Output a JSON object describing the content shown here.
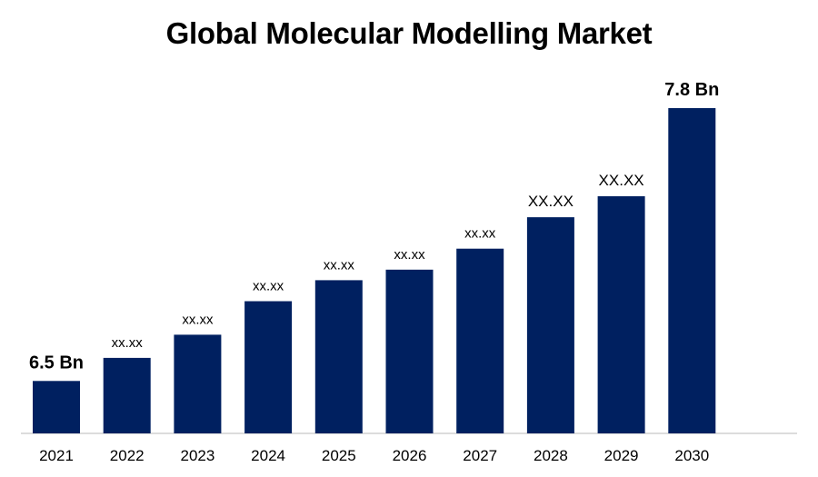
{
  "chart_data": {
    "type": "bar",
    "title": "Global Molecular Modelling Market",
    "xlabel": "",
    "ylabel": "",
    "categories": [
      "2021",
      "2022",
      "2023",
      "2024",
      "2025",
      "2026",
      "2027",
      "2028",
      "2029",
      "2030"
    ],
    "values": [
      6.5,
      6.61,
      6.72,
      6.88,
      6.98,
      7.03,
      7.13,
      7.28,
      7.38,
      7.8
    ],
    "data_labels": [
      "6.5 Bn",
      "xx.xx",
      "xx.xx",
      "xx.xx",
      "xx.xx",
      "xx.xx",
      "xx.xx",
      "XX.XX",
      "XX.XX",
      "7.8 Bn"
    ],
    "ylim": [
      6.25,
      7.8
    ],
    "grid": false,
    "legend": "none",
    "bar_color": "#002060"
  }
}
